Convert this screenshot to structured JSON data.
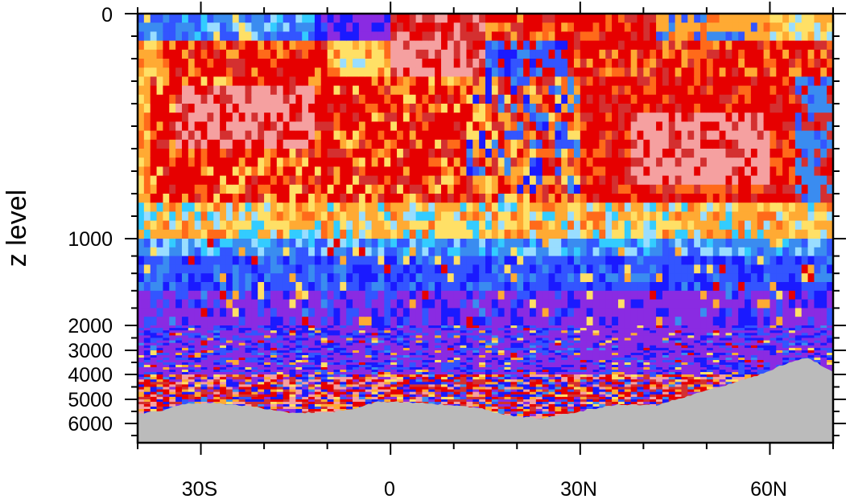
{
  "chart_data": {
    "type": "heatmap",
    "title": "",
    "xlabel": "",
    "ylabel": "z level",
    "x_range": [
      -40,
      70
    ],
    "y_range": [
      0,
      6800
    ],
    "y_scale": "stretched (upper 1000 m expanded)",
    "x_ticks": [
      {
        "value": -30,
        "label": "30S"
      },
      {
        "value": 0,
        "label": "0"
      },
      {
        "value": 30,
        "label": "30N"
      },
      {
        "value": 60,
        "label": "60N"
      }
    ],
    "y_ticks": [
      {
        "value": 0,
        "label": "0"
      },
      {
        "value": 1000,
        "label": "1000"
      },
      {
        "value": 2000,
        "label": "2000"
      },
      {
        "value": 3000,
        "label": "3000"
      },
      {
        "value": 4000,
        "label": "4000"
      },
      {
        "value": 5000,
        "label": "5000"
      },
      {
        "value": 6000,
        "label": "6000"
      }
    ],
    "colormap": [
      "#1a1aff",
      "#3355ff",
      "#3a8cf0",
      "#33ccff",
      "#99ddff",
      "#ffe066",
      "#ffaa33",
      "#ff6a1a",
      "#e60000",
      "#d43030",
      "#f5a0a0",
      "#8a2be2"
    ],
    "land_color": "#bbbbbb",
    "bathymetry_depth_m": [
      [
        -40,
        5600
      ],
      [
        -36,
        5450
      ],
      [
        -33,
        5200
      ],
      [
        -28,
        5150
      ],
      [
        -22,
        5300
      ],
      [
        -16,
        5550
      ],
      [
        -10,
        5550
      ],
      [
        -6,
        5400
      ],
      [
        -2,
        5100
      ],
      [
        2,
        5100
      ],
      [
        8,
        5200
      ],
      [
        14,
        5350
      ],
      [
        18,
        5650
      ],
      [
        24,
        5800
      ],
      [
        30,
        5500
      ],
      [
        36,
        5200
      ],
      [
        42,
        5250
      ],
      [
        48,
        4800
      ],
      [
        54,
        4350
      ],
      [
        58,
        4050
      ],
      [
        63,
        3500
      ],
      [
        66,
        3300
      ],
      [
        70,
        3900
      ]
    ],
    "regions": [
      {
        "x": [
          -40,
          70
        ],
        "y": [
          0,
          250
        ],
        "value": "warm, cool patches near surface"
      },
      {
        "x": [
          -35,
          65
        ],
        "y": [
          250,
          850
        ],
        "value": "high (red, pink)"
      },
      {
        "x": [
          -40,
          70
        ],
        "y": [
          850,
          1650
        ],
        "value": "medium-low (light blue to blue)"
      },
      {
        "x": [
          -40,
          70
        ],
        "y": [
          1650,
          4000
        ],
        "value": "low (blue-purple)"
      },
      {
        "x": [
          -40,
          60
        ],
        "y": [
          4000,
          5800
        ],
        "value": "noisy high (red, pink mixed)"
      }
    ]
  }
}
